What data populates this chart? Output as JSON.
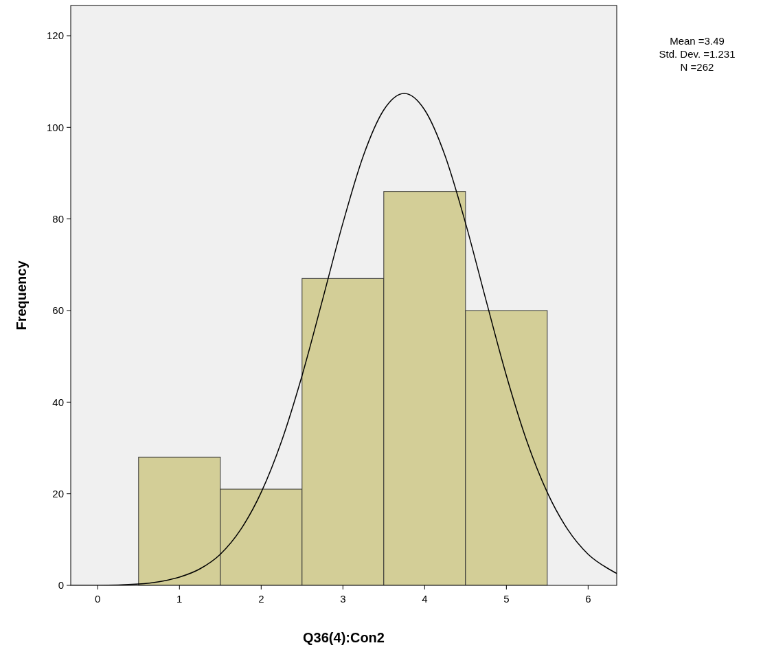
{
  "chart_data": {
    "type": "histogram",
    "xlabel": "Q36(4):Con2",
    "ylabel": "Frequency",
    "annotations": [
      "Mean =3.49",
      "Std. Dev. =1.231",
      "N =262"
    ],
    "bins": [
      0.5,
      1.5,
      2.5,
      3.5,
      4.5,
      5.5
    ],
    "xlim": [
      -0.33,
      6.35
    ],
    "ylim": [
      0,
      126.6
    ],
    "xticks": [
      0,
      1,
      2,
      3,
      4,
      5,
      6
    ],
    "yticks": [
      0,
      20,
      40,
      60,
      80,
      100,
      120
    ],
    "grid": false,
    "series": [
      {
        "color": "#d3ce97",
        "values": [
          28,
          21,
          67,
          86,
          60
        ]
      },
      {
        "type": "line",
        "color": "#000000",
        "marker": "none",
        "line_style": "solid",
        "x": [
          -0.33,
          0,
          0.5,
          0.75,
          1,
          1.25,
          1.5,
          1.75,
          2,
          2.25,
          2.5,
          2.75,
          3,
          3.25,
          3.5,
          3.75,
          4,
          4.25,
          4.5,
          4.75,
          5,
          5.25,
          5.5,
          5.75,
          6,
          6.25,
          6.35
        ],
        "values": [
          0,
          0,
          0.3,
          0.8,
          1.8,
          3.6,
          6.8,
          12.2,
          20.3,
          31.5,
          45.8,
          62.3,
          79.1,
          93.8,
          103.8,
          107.4,
          103.8,
          93.8,
          79.1,
          62.3,
          45.8,
          31.5,
          20.3,
          12.2,
          6.8,
          3.6,
          2.6
        ]
      }
    ]
  }
}
